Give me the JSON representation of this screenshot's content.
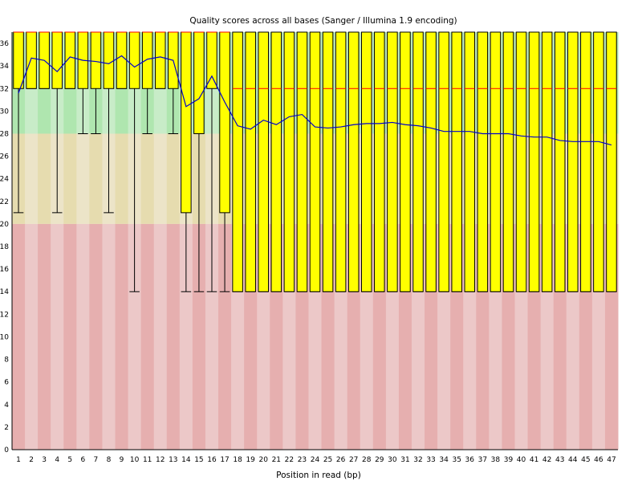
{
  "chart_data": {
    "type": "box",
    "title": "Quality scores across all bases (Sanger / Illumina 1.9 encoding)",
    "xlabel": "Position in read (bp)",
    "ylabel": "",
    "ylim": [
      0,
      37
    ],
    "y_ticks": [
      0,
      2,
      4,
      6,
      8,
      10,
      12,
      14,
      16,
      18,
      20,
      22,
      24,
      26,
      28,
      30,
      32,
      34,
      36
    ],
    "categories": [
      "1",
      "2",
      "3",
      "4",
      "5",
      "6",
      "7",
      "8",
      "9",
      "10",
      "11",
      "12",
      "13",
      "14",
      "15",
      "16",
      "17",
      "18",
      "19",
      "20",
      "21",
      "22",
      "23",
      "24",
      "25",
      "26",
      "27",
      "28",
      "29",
      "30",
      "31",
      "32",
      "33",
      "34",
      "35",
      "36",
      "37",
      "38",
      "39",
      "40",
      "41",
      "42",
      "43",
      "44",
      "45",
      "46",
      "47"
    ],
    "quality_bands": [
      {
        "name": "good",
        "from": 28,
        "to": 37,
        "color_a": "#AFE6AF",
        "color_b": "#C8ECC8"
      },
      {
        "name": "reasonable",
        "from": 20,
        "to": 28,
        "color_a": "#E6DCAF",
        "color_b": "#ECE4C8"
      },
      {
        "name": "poor",
        "from": 0,
        "to": 20,
        "color_a": "#E6AFAF",
        "color_b": "#ECC8C8"
      }
    ],
    "colors": {
      "box": "#FFFF00",
      "median": "#FF0000",
      "mean_line": "#0000CC",
      "whisker": "#000000"
    },
    "series": [
      {
        "name": "boxes",
        "q1": [
          32,
          32,
          32,
          32,
          32,
          32,
          32,
          32,
          32,
          32,
          32,
          32,
          32,
          21,
          28,
          32,
          21,
          14,
          14,
          14,
          14,
          14,
          14,
          14,
          14,
          14,
          14,
          14,
          14,
          14,
          14,
          14,
          14,
          14,
          14,
          14,
          14,
          14,
          14,
          14,
          14,
          14,
          14,
          14,
          14,
          14,
          14
        ],
        "median": [
          37,
          37,
          37,
          37,
          37,
          37,
          37,
          37,
          37,
          37,
          37,
          37,
          37,
          37,
          37,
          37,
          37,
          32,
          32,
          32,
          32,
          32,
          32,
          32,
          32,
          32,
          32,
          32,
          32,
          32,
          32,
          32,
          32,
          32,
          32,
          32,
          32,
          32,
          32,
          32,
          32,
          32,
          32,
          32,
          32,
          32,
          32
        ],
        "q3": [
          37,
          37,
          37,
          37,
          37,
          37,
          37,
          37,
          37,
          37,
          37,
          37,
          37,
          37,
          37,
          37,
          37,
          37,
          37,
          37,
          37,
          37,
          37,
          37,
          37,
          37,
          37,
          37,
          37,
          37,
          37,
          37,
          37,
          37,
          37,
          37,
          37,
          37,
          37,
          37,
          37,
          37,
          37,
          37,
          37,
          37,
          37
        ],
        "whisker_low": [
          21,
          32,
          32,
          21,
          32,
          28,
          28,
          21,
          32,
          14,
          28,
          32,
          28,
          14,
          14,
          14,
          14,
          14,
          14,
          14,
          14,
          14,
          14,
          14,
          14,
          14,
          14,
          14,
          14,
          14,
          14,
          14,
          14,
          14,
          14,
          14,
          14,
          14,
          14,
          14,
          14,
          14,
          14,
          14,
          14,
          14,
          14
        ],
        "whisker_high": [
          37,
          37,
          37,
          37,
          37,
          37,
          37,
          37,
          37,
          37,
          37,
          37,
          37,
          37,
          37,
          37,
          37,
          37,
          37,
          37,
          37,
          37,
          37,
          37,
          37,
          37,
          37,
          37,
          37,
          37,
          37,
          37,
          37,
          37,
          37,
          37,
          37,
          37,
          37,
          37,
          37,
          37,
          37,
          37,
          37,
          37,
          37
        ]
      },
      {
        "name": "mean",
        "values": [
          31.6,
          34.7,
          34.5,
          33.5,
          34.8,
          34.5,
          34.4,
          34.2,
          34.9,
          33.9,
          34.6,
          34.8,
          34.5,
          30.4,
          31.1,
          33.1,
          30.8,
          28.7,
          28.4,
          29.2,
          28.8,
          29.5,
          29.7,
          28.6,
          28.5,
          28.6,
          28.8,
          28.9,
          28.9,
          29.0,
          28.8,
          28.7,
          28.5,
          28.2,
          28.2,
          28.2,
          28.0,
          28.0,
          28.0,
          27.8,
          27.7,
          27.7,
          27.4,
          27.3,
          27.3,
          27.3,
          27.0
        ]
      }
    ]
  }
}
